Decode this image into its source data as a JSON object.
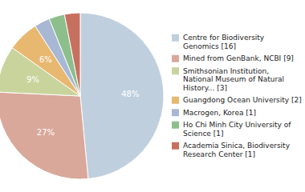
{
  "chart_data": {
    "type": "pie",
    "categories": [
      "Centre for Biodiversity\nGenomics [16]",
      "Mined from GenBank, NCBI [9]",
      "Smithsonian Institution,\nNational Museum of Natural\nHistory... [3]",
      "Guangdong Ocean University [2]",
      "Macrogen, Korea [1]",
      "Ho Chi Minh City University of\nScience [1]",
      "Academia Sinica, Biodiversity\nResearch Center [1]"
    ],
    "values": [
      48,
      27,
      9,
      6,
      3,
      3,
      3
    ],
    "value_labels": [
      "48%",
      "27%",
      "9%",
      "6%",
      null,
      null,
      null
    ],
    "colors": [
      "#bfcfde",
      "#d9a89a",
      "#c8d49c",
      "#e8b870",
      "#a8b8d4",
      "#8cbf8c",
      "#c87060"
    ],
    "data_labels": true,
    "legend": "right"
  }
}
